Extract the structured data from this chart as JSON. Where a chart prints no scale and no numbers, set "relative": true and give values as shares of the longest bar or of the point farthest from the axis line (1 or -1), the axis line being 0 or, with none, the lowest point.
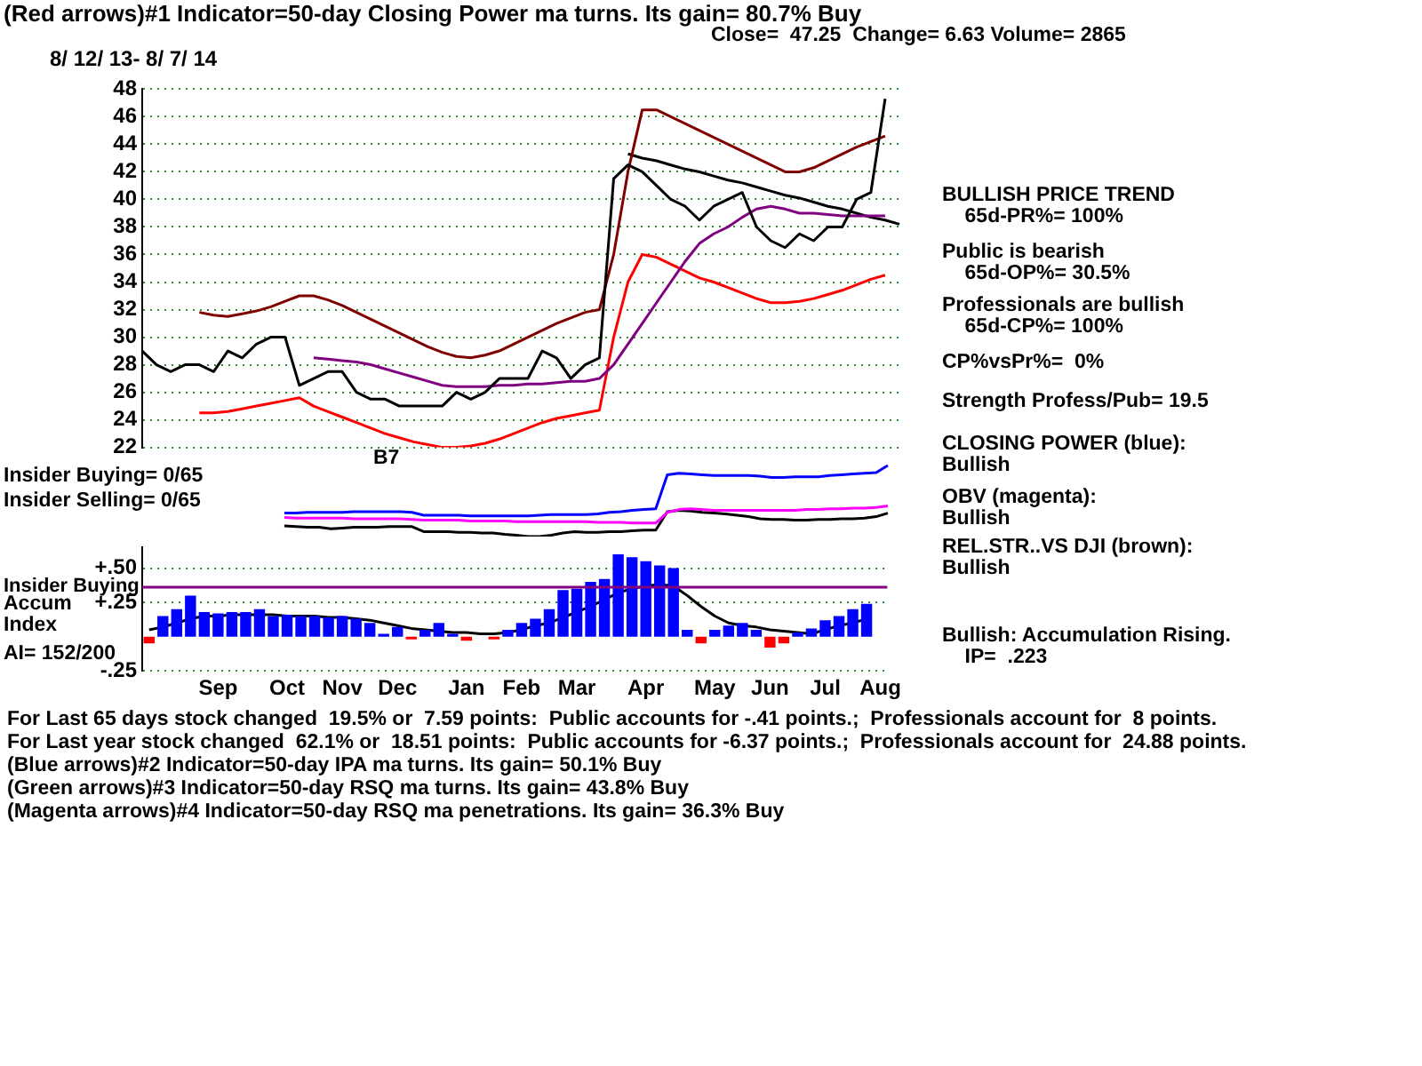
{
  "chart_data": [
    {
      "type": "line",
      "title": "(Red arrows)#1 Indicator=50-day Closing Power ma turns. Its gain= 80.7% Buy",
      "subtitle": "8/ 12/ 13- 8/ 7/ 14",
      "categories": [
        null,
        null,
        null,
        null,
        null,
        null,
        null,
        null,
        null,
        null,
        null,
        null,
        null,
        null,
        null,
        null,
        null,
        null,
        null,
        null,
        null,
        null,
        null,
        null,
        null,
        null,
        null,
        null,
        null,
        null,
        null,
        null,
        null,
        null,
        null,
        null,
        null,
        null,
        null,
        null,
        null,
        null,
        null,
        null,
        null,
        null,
        null,
        null,
        null,
        null,
        null,
        null,
        null,
        null
      ],
      "series": [
        {
          "color": "#000000",
          "values": [
            29,
            28,
            27.5,
            28,
            28,
            27.5,
            29,
            28.5,
            29.5,
            30,
            30,
            26.5,
            27,
            27.5,
            27.5,
            26,
            25.5,
            25.5,
            25,
            25,
            25,
            25,
            26,
            25.5,
            26,
            27,
            27,
            27,
            29,
            28.5,
            27,
            28,
            28.5,
            41.5,
            42.5,
            42,
            41,
            40,
            39.5,
            38.5,
            39.5,
            40,
            40.5,
            38,
            37,
            36.5,
            37.5,
            37,
            38,
            38,
            40,
            40.5,
            47.3,
            null
          ]
        },
        {
          "color": "#800080",
          "values": [
            null,
            null,
            null,
            null,
            null,
            null,
            null,
            null,
            null,
            null,
            null,
            null,
            28.5,
            28.4,
            28.3,
            28.2,
            28,
            27.7,
            27.4,
            27.1,
            26.8,
            26.5,
            26.4,
            26.4,
            26.4,
            26.5,
            26.5,
            26.6,
            26.6,
            26.7,
            26.8,
            26.8,
            27,
            28,
            29.5,
            31,
            32.5,
            34,
            35.5,
            36.8,
            37.5,
            38,
            38.7,
            39.3,
            39.5,
            39.3,
            39,
            39,
            38.9,
            38.8,
            38.8,
            38.8,
            38.8,
            null
          ]
        },
        {
          "color": "#800000",
          "values": [
            null,
            null,
            null,
            null,
            31.8,
            31.6,
            31.5,
            31.7,
            31.9,
            32.2,
            32.6,
            33,
            33,
            32.7,
            32.3,
            31.8,
            31.3,
            30.8,
            30.3,
            29.8,
            29.3,
            28.9,
            28.6,
            28.5,
            28.7,
            29,
            29.5,
            30,
            30.5,
            31,
            31.4,
            31.8,
            32,
            36,
            42,
            46.5,
            46.5,
            46,
            45.5,
            45,
            44.5,
            44,
            43.5,
            43,
            42.5,
            42,
            42,
            42.3,
            42.8,
            43.3,
            43.8,
            44.2,
            44.6,
            null
          ]
        },
        {
          "color": "#ff0000",
          "values": [
            null,
            null,
            null,
            null,
            24.5,
            24.5,
            24.6,
            24.8,
            25,
            25.2,
            25.4,
            25.6,
            25,
            24.6,
            24.2,
            23.8,
            23.4,
            23,
            22.7,
            22.4,
            22.2,
            22,
            22,
            22.1,
            22.3,
            22.6,
            23,
            23.4,
            23.8,
            24.1,
            24.3,
            24.5,
            24.7,
            30,
            34,
            36,
            35.8,
            35.3,
            34.8,
            34.3,
            34,
            33.6,
            33.2,
            32.8,
            32.5,
            32.5,
            32.6,
            32.8,
            33.1,
            33.4,
            33.8,
            34.2,
            34.5,
            null
          ]
        },
        {
          "color": "#000000",
          "values": [
            null,
            null,
            null,
            null,
            null,
            null,
            null,
            null,
            null,
            null,
            null,
            null,
            null,
            null,
            null,
            null,
            null,
            null,
            null,
            null,
            null,
            null,
            null,
            null,
            null,
            null,
            null,
            null,
            null,
            null,
            null,
            null,
            null,
            null,
            43.3,
            43.0,
            42.8,
            42.5,
            42.2,
            42.0,
            41.7,
            41.4,
            41.2,
            40.9,
            40.6,
            40.3,
            40.1,
            39.8,
            39.5,
            39.3,
            39.0,
            38.7,
            38.5,
            38.2
          ]
        }
      ],
      "ylim": [
        22,
        48
      ],
      "yticks": [
        22,
        24,
        26,
        28,
        30,
        32,
        34,
        36,
        38,
        40,
        42,
        44,
        46,
        48
      ],
      "grid": "y",
      "tick_labels": "y",
      "annotations": [
        "Close=  47.25  Change= 6.63 Volume= 2865",
        "BULLISH PRICE TREND\n    65d-PR%= 100%",
        "Public is bearish\n    65d-OP%= 30.5%",
        "Professionals are bullish\n    65d-CP%= 100%",
        "CP%vsPr%=  0%",
        "Strength Profess/Pub= 19.5"
      ]
    },
    {
      "type": "line",
      "relative": true,
      "tick_labels": false,
      "categories": [
        null,
        null,
        null,
        null,
        null,
        null,
        null,
        null,
        null,
        null,
        null,
        null,
        null,
        null,
        null,
        null,
        null,
        null,
        null,
        null,
        null,
        null,
        null,
        null,
        null,
        null,
        null,
        null,
        null,
        null,
        null,
        null,
        null,
        null,
        null,
        null,
        null,
        null,
        null,
        null,
        null,
        null,
        null,
        null,
        null,
        null,
        null,
        null,
        null,
        null,
        null,
        null,
        null,
        null
      ],
      "series": [
        {
          "color": "#0000ff",
          "values": [
            0.33,
            0.33,
            0.34,
            0.34,
            0.34,
            0.34,
            0.35,
            0.35,
            0.35,
            0.35,
            0.35,
            0.34,
            0.3,
            0.3,
            0.3,
            0.3,
            0.29,
            0.29,
            0.29,
            0.29,
            0.29,
            0.29,
            0.3,
            0.31,
            0.31,
            0.31,
            0.31,
            0.32,
            0.34,
            0.35,
            0.37,
            0.38,
            0.39,
            0.87,
            0.89,
            0.88,
            0.87,
            0.86,
            0.86,
            0.86,
            0.86,
            0.85,
            0.83,
            0.83,
            0.84,
            0.84,
            0.84,
            0.86,
            0.87,
            0.88,
            0.89,
            0.9,
            1,
            null
          ]
        },
        {
          "color": "#ff00ff",
          "values": [
            0.27,
            0.26,
            0.26,
            0.26,
            0.26,
            0.26,
            0.25,
            0.25,
            0.25,
            0.25,
            0.25,
            0.24,
            0.23,
            0.23,
            0.23,
            0.23,
            0.22,
            0.22,
            0.22,
            0.22,
            0.21,
            0.21,
            0.21,
            0.21,
            0.21,
            0.21,
            0.21,
            0.2,
            0.2,
            0.2,
            0.19,
            0.19,
            0.19,
            0.34,
            0.38,
            0.39,
            0.38,
            0.37,
            0.37,
            0.37,
            0.37,
            0.37,
            0.37,
            0.37,
            0.37,
            0.38,
            0.38,
            0.39,
            0.39,
            0.4,
            0.4,
            0.41,
            0.43,
            null
          ]
        },
        {
          "color": "#000000",
          "values": [
            0.15,
            0.14,
            0.13,
            0.13,
            0.11,
            0.12,
            0.13,
            0.13,
            0.13,
            0.14,
            0.14,
            0.14,
            0.07,
            0.07,
            0.07,
            0.06,
            0.06,
            0.05,
            0.05,
            0.03,
            0.02,
            0,
            0,
            0.02,
            0.05,
            0.07,
            0.06,
            0.06,
            0.07,
            0.07,
            0.08,
            0.09,
            0.09,
            0.35,
            0.37,
            0.36,
            0.34,
            0.33,
            0.32,
            0.3,
            0.28,
            0.25,
            0.24,
            0.24,
            0.23,
            0.23,
            0.24,
            0.24,
            0.25,
            0.25,
            0.26,
            0.28,
            0.33,
            null
          ]
        }
      ],
      "annotations": [
        "B7",
        "Insider Buying= 0/65",
        "Insider Selling= 0/65",
        "CLOSING POWER (blue):\nBullish",
        "OBV (magenta):\nBullish",
        "REL.STR..VS DJI (brown):\nBullish"
      ]
    },
    {
      "type": "bar",
      "categories": [
        null,
        null,
        null,
        null,
        null,
        "Sep",
        null,
        null,
        null,
        null,
        "Oct",
        null,
        null,
        null,
        "Nov",
        null,
        null,
        null,
        "Dec",
        null,
        null,
        null,
        null,
        "Jan",
        null,
        null,
        null,
        "Feb",
        null,
        null,
        null,
        "Mar",
        null,
        null,
        null,
        null,
        "Apr",
        null,
        null,
        null,
        null,
        "May",
        null,
        null,
        null,
        "Jun",
        null,
        null,
        null,
        "Jul",
        null,
        null,
        null,
        "Aug"
      ],
      "series": [
        {
          "type": "bar",
          "colors": [
            "#ff0000",
            "#0000ff",
            "#0000ff",
            "#0000ff",
            "#0000ff",
            "#0000ff",
            "#0000ff",
            "#0000ff",
            "#0000ff",
            "#0000ff",
            "#0000ff",
            "#0000ff",
            "#0000ff",
            "#0000ff",
            "#0000ff",
            "#0000ff",
            "#0000ff",
            "#0000ff",
            "#0000ff",
            "#ff0000",
            "#0000ff",
            "#0000ff",
            "#0000ff",
            "#ff0000",
            "#0000ff",
            "#ff0000",
            "#0000ff",
            "#0000ff",
            "#0000ff",
            "#0000ff",
            "#0000ff",
            "#0000ff",
            "#0000ff",
            "#0000ff",
            "#0000ff",
            "#0000ff",
            "#0000ff",
            "#0000ff",
            "#0000ff",
            "#0000ff",
            "#ff0000",
            "#0000ff",
            "#0000ff",
            "#0000ff",
            "#0000ff",
            "#ff0000",
            "#ff0000",
            "#0000ff",
            "#0000ff",
            "#0000ff",
            "#0000ff",
            "#0000ff",
            "#0000ff",
            "#0000ff"
          ],
          "values": [
            -0.05,
            0.15,
            0.2,
            0.3,
            0.18,
            0.17,
            0.18,
            0.18,
            0.2,
            0.15,
            0.16,
            0.15,
            0.15,
            0.14,
            0.15,
            0.13,
            0.1,
            0.02,
            0.07,
            -0.02,
            0.05,
            0.1,
            0.02,
            -0.03,
            0,
            -0.02,
            0.05,
            0.1,
            0.13,
            0.2,
            0.34,
            0.35,
            0.4,
            0.42,
            0.6,
            0.58,
            0.55,
            0.52,
            0.5,
            0.05,
            -0.05,
            0.05,
            0.08,
            0.1,
            0.05,
            -0.08,
            -0.05,
            0.03,
            0.06,
            0.12,
            0.15,
            0.2,
            0.24,
            null
          ]
        },
        {
          "type": "line",
          "color": "#000000",
          "values": [
            0.05,
            0.07,
            0.1,
            0.13,
            0.15,
            0.15,
            0.16,
            0.16,
            0.16,
            0.16,
            0.15,
            0.15,
            0.15,
            0.14,
            0.14,
            0.13,
            0.12,
            0.1,
            0.08,
            0.06,
            0.05,
            0.04,
            0.03,
            0.03,
            0.02,
            0.02,
            0.03,
            0.05,
            0.08,
            0.1,
            0.14,
            0.18,
            0.22,
            0.27,
            0.32,
            0.35,
            0.37,
            0.38,
            0.37,
            0.3,
            0.22,
            0.15,
            0.1,
            0.08,
            0.07,
            0.05,
            0.04,
            0.03,
            0.02,
            0.05,
            0.08,
            0.1,
            0.13,
            null
          ]
        }
      ],
      "ylim": [
        -0.25,
        0.65
      ],
      "yticks": [
        {
          "value": 0.5,
          "label": "+.50"
        },
        {
          "value": 0.25,
          "label": "+.25"
        },
        {
          "value": -0.25,
          "label": "-.25"
        }
      ],
      "grid": "y",
      "ref_lines": [
        {
          "axis": "y",
          "value": 0.36,
          "label": "Insider Buying",
          "color": "#800080"
        }
      ],
      "annotations": [
        "Accum\nIndex",
        "AI= 152/200",
        "Bullish: Accumulation Rising.\n    IP=  .223",
        "For Last 65 days stock changed  19.5% or  7.59 points:  Public accounts for -.41 points.;  Professionals account for  8 points.",
        "For Last year stock changed  62.1% or  18.51 points:  Public accounts for -6.37 points.;  Professionals account for  24.88 points.",
        "(Blue arrows)#2 Indicator=50-day IPA ma turns. Its gain= 50.1% Buy",
        "(Green arrows)#3 Indicator=50-day RSQ ma turns. Its gain= 43.8% Buy",
        "(Magenta arrows)#4 Indicator=50-day RSQ ma penetrations. Its gain= 36.3% Buy"
      ]
    }
  ]
}
